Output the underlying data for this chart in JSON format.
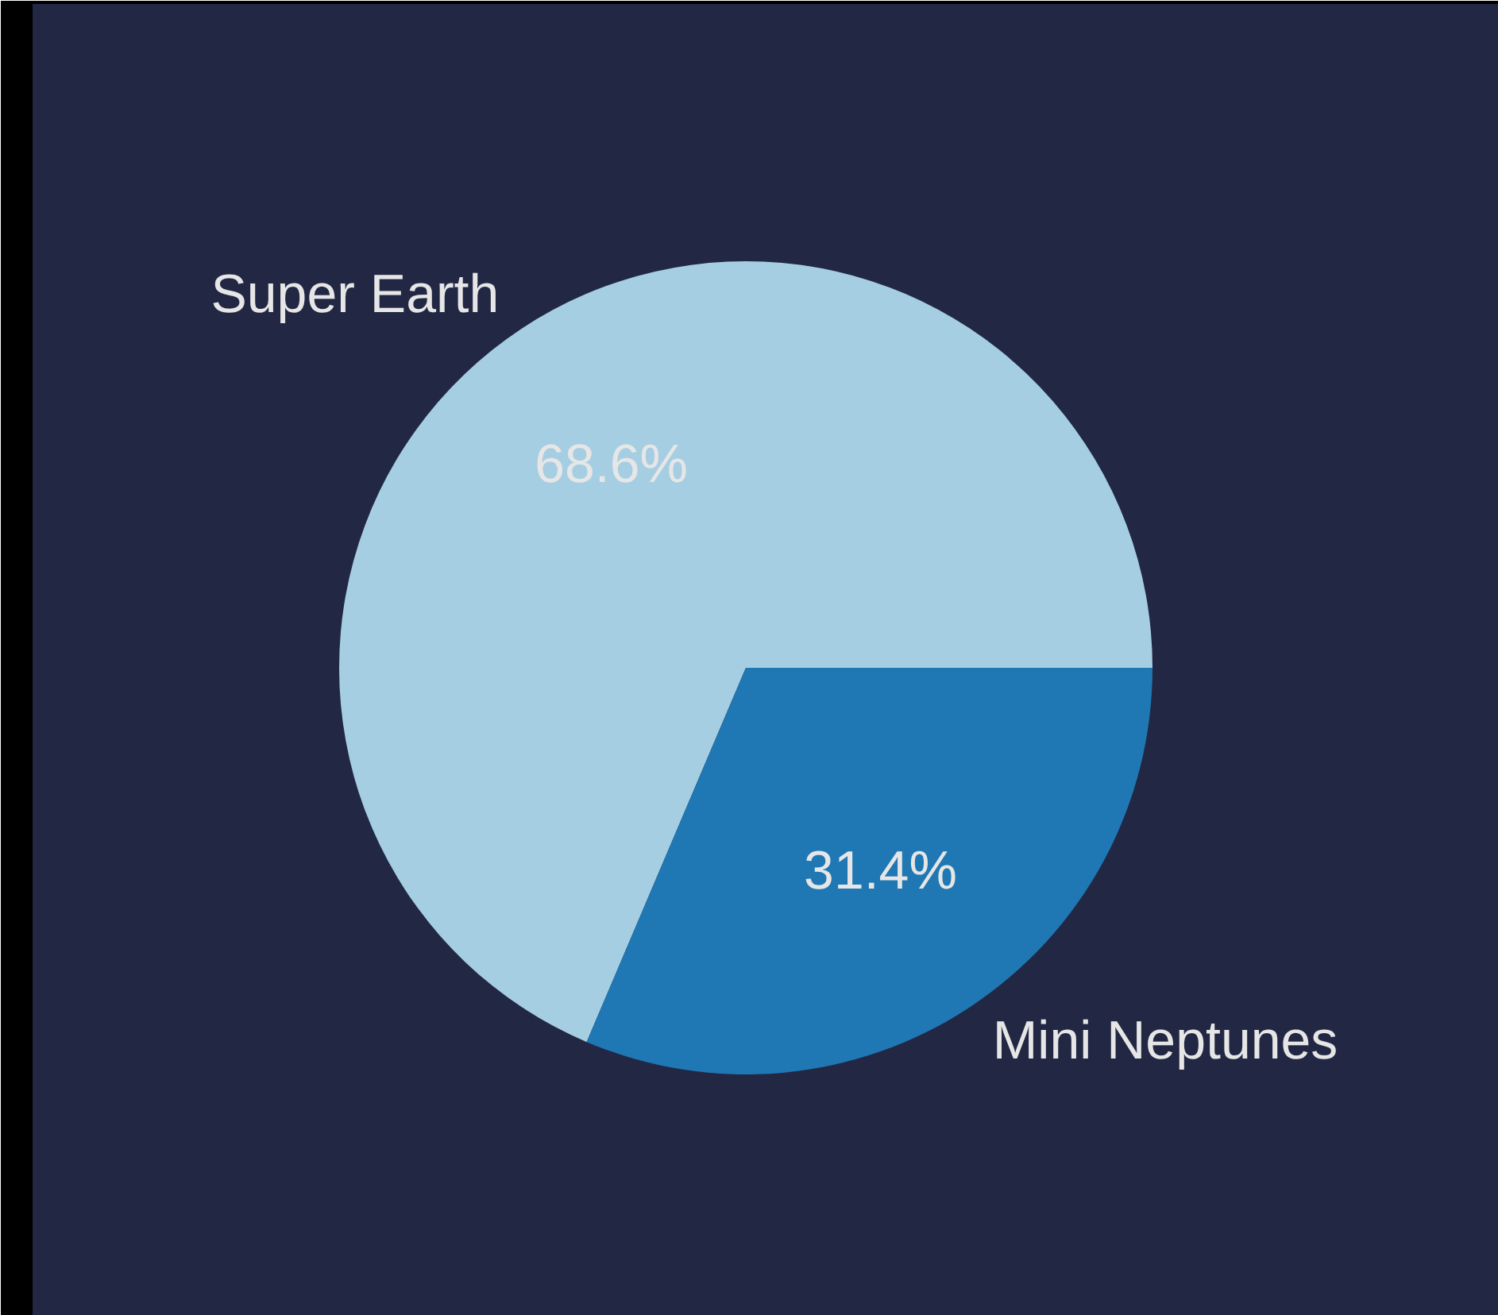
{
  "chart_data": {
    "type": "pie",
    "categories": [
      "Super Earth",
      "Mini Neptunes"
    ],
    "values": [
      68.6,
      31.4
    ],
    "colors": [
      "#a6cee3",
      "#1f78b4"
    ],
    "value_labels": [
      "68.6%",
      "31.4%"
    ]
  }
}
